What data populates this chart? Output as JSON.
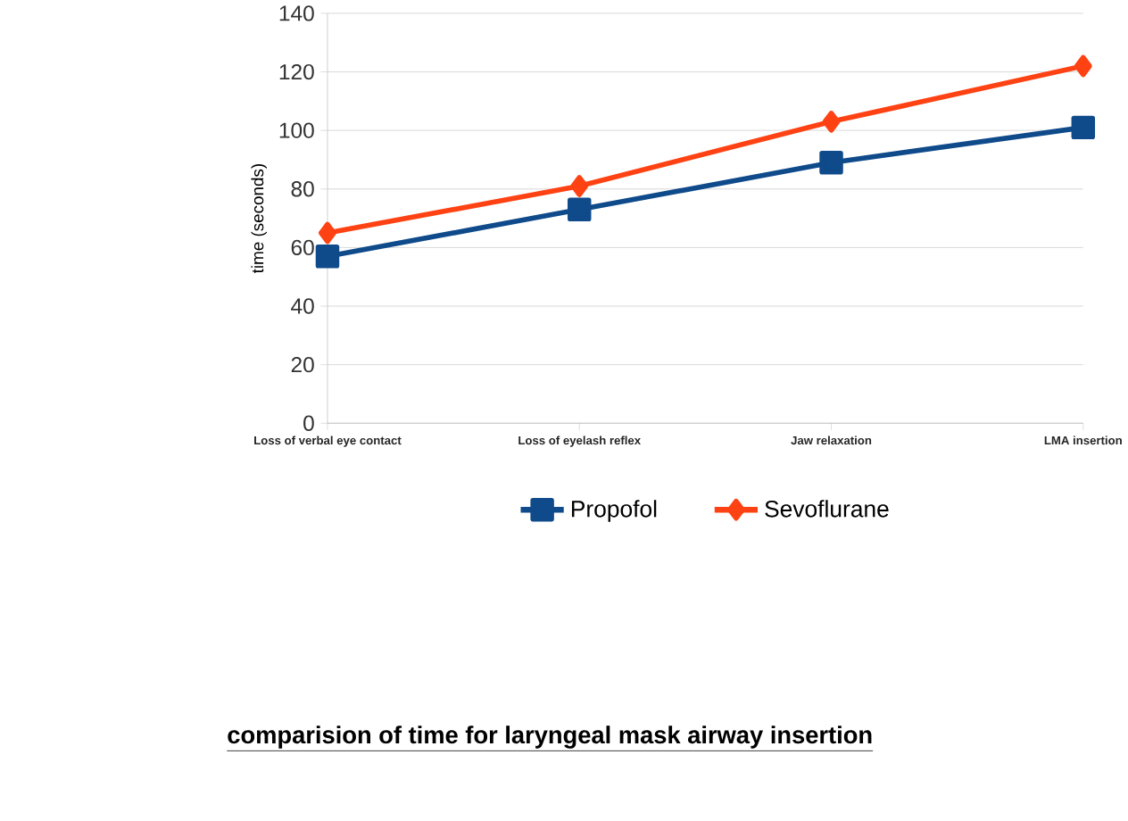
{
  "chart_data": {
    "type": "line",
    "title": "comparision of time for laryngeal mask airway insertion",
    "ylabel": "time (seconds)",
    "categories": [
      "Loss of verbal eye contact",
      "Loss of eyelash reflex",
      "Jaw relaxation",
      "LMA insertion"
    ],
    "series": [
      {
        "name": "Propofol",
        "color": "#0f4a8a",
        "marker": "square",
        "values": [
          57,
          73,
          89,
          101
        ]
      },
      {
        "name": "Sevoflurane",
        "color": "#ff4213",
        "marker": "diamond",
        "values": [
          65,
          81,
          103,
          122
        ]
      }
    ],
    "ylim": [
      0,
      140
    ],
    "yticks": [
      0,
      20,
      40,
      60,
      80,
      100,
      120,
      140
    ],
    "grid": "y",
    "legend": "bottom"
  }
}
